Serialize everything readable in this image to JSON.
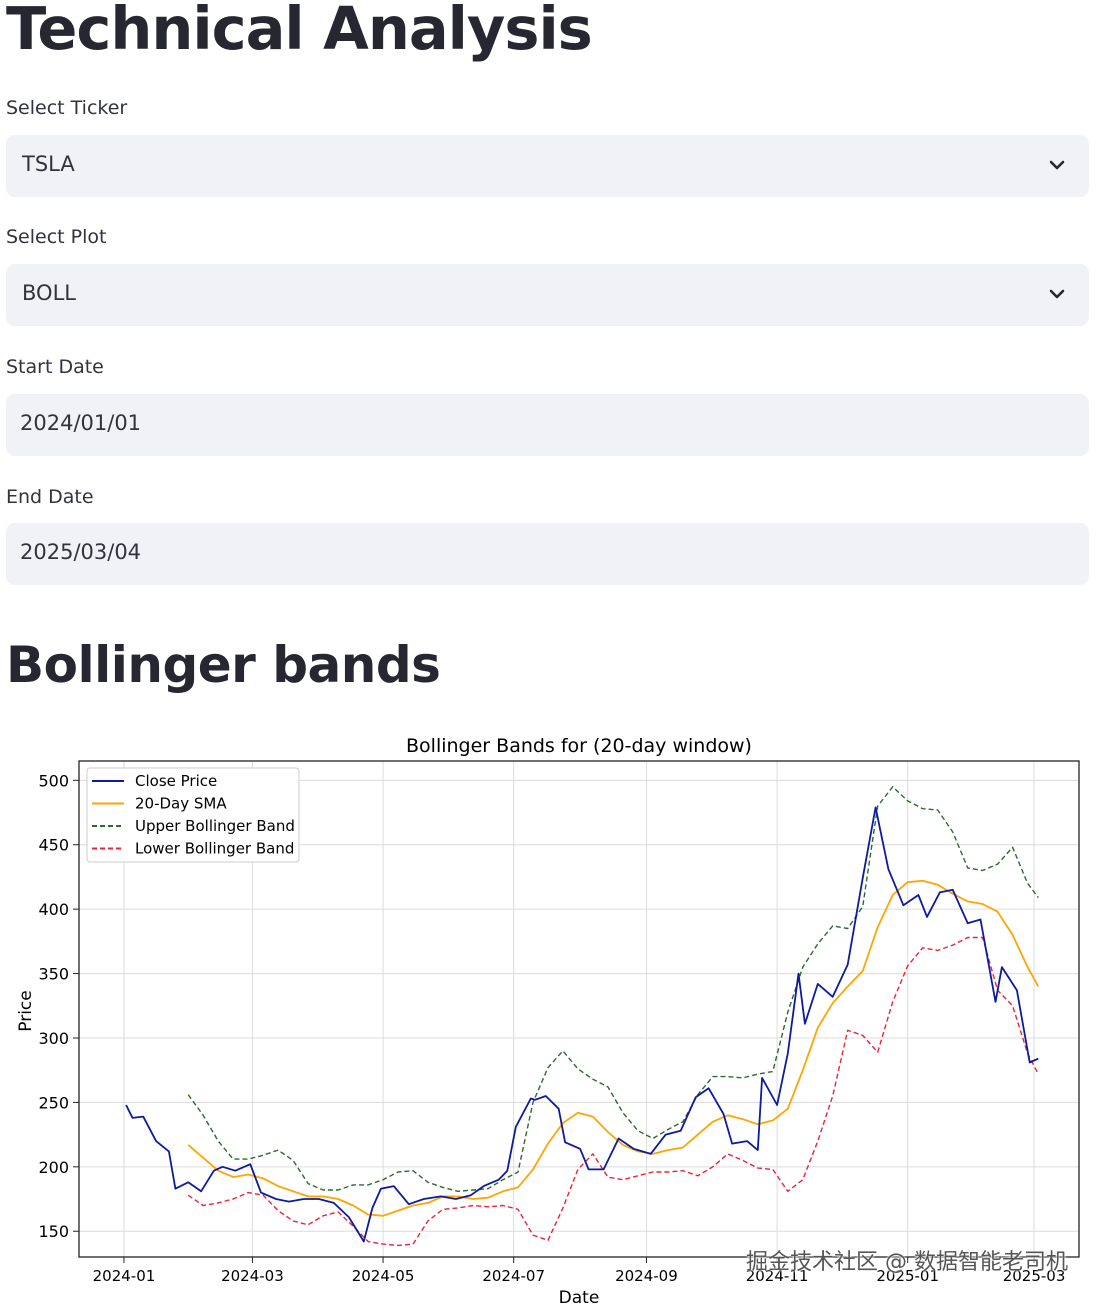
{
  "page": {
    "title": "Technical Analysis",
    "section_title": "Bollinger bands"
  },
  "form": {
    "ticker_label": "Select Ticker",
    "ticker_value": "TSLA",
    "plot_label": "Select Plot",
    "plot_value": "BOLL",
    "start_label": "Start Date",
    "start_value": "2024/01/01",
    "end_label": "End Date",
    "end_value": "2025/03/04"
  },
  "watermark": "掘金技术社区 @ 数据智能老司机",
  "icons": {
    "dropdown": "chevron-down-icon"
  },
  "chart_data": {
    "type": "line",
    "title": "Bollinger Bands for (20-day window)",
    "xlabel": "Date",
    "ylabel": "Price",
    "ylim": [
      130,
      515
    ],
    "xlim": [
      "2023-12-11",
      "2025-03-22"
    ],
    "xticks": [
      "2024-01",
      "2024-03",
      "2024-05",
      "2024-07",
      "2024-09",
      "2024-11",
      "2025-01",
      "2025-03"
    ],
    "yticks": [
      150,
      200,
      250,
      300,
      350,
      400,
      450,
      500
    ],
    "grid": true,
    "legend": "top-left",
    "series": [
      {
        "name": "Close Price",
        "color": "#0d1b9e",
        "style": "solid",
        "points": [
          [
            "2024-01-02",
            248
          ],
          [
            "2024-01-05",
            238
          ],
          [
            "2024-01-10",
            239
          ],
          [
            "2024-01-16",
            220
          ],
          [
            "2024-01-22",
            212
          ],
          [
            "2024-01-25",
            183
          ],
          [
            "2024-01-31",
            188
          ],
          [
            "2024-02-06",
            181
          ],
          [
            "2024-02-12",
            197
          ],
          [
            "2024-02-16",
            200
          ],
          [
            "2024-02-22",
            197
          ],
          [
            "2024-02-29",
            202
          ],
          [
            "2024-03-05",
            180
          ],
          [
            "2024-03-12",
            175
          ],
          [
            "2024-03-18",
            173
          ],
          [
            "2024-03-25",
            175
          ],
          [
            "2024-04-01",
            175
          ],
          [
            "2024-04-08",
            172
          ],
          [
            "2024-04-15",
            161
          ],
          [
            "2024-04-22",
            142
          ],
          [
            "2024-04-26",
            168
          ],
          [
            "2024-04-30",
            183
          ],
          [
            "2024-05-06",
            185
          ],
          [
            "2024-05-13",
            171
          ],
          [
            "2024-05-20",
            175
          ],
          [
            "2024-05-28",
            177
          ],
          [
            "2024-06-04",
            175
          ],
          [
            "2024-06-11",
            178
          ],
          [
            "2024-06-17",
            185
          ],
          [
            "2024-06-24",
            190
          ],
          [
            "2024-06-28",
            197
          ],
          [
            "2024-07-02",
            231
          ],
          [
            "2024-07-09",
            253
          ],
          [
            "2024-07-11",
            252
          ],
          [
            "2024-07-16",
            255
          ],
          [
            "2024-07-22",
            245
          ],
          [
            "2024-07-25",
            219
          ],
          [
            "2024-08-01",
            214
          ],
          [
            "2024-08-05",
            198
          ],
          [
            "2024-08-12",
            198
          ],
          [
            "2024-08-19",
            222
          ],
          [
            "2024-08-26",
            214
          ],
          [
            "2024-09-03",
            210
          ],
          [
            "2024-09-10",
            225
          ],
          [
            "2024-09-17",
            228
          ],
          [
            "2024-09-24",
            254
          ],
          [
            "2024-09-30",
            261
          ],
          [
            "2024-10-07",
            241
          ],
          [
            "2024-10-11",
            218
          ],
          [
            "2024-10-18",
            220
          ],
          [
            "2024-10-23",
            213
          ],
          [
            "2024-10-25",
            269
          ],
          [
            "2024-11-01",
            248
          ],
          [
            "2024-11-06",
            288
          ],
          [
            "2024-11-11",
            350
          ],
          [
            "2024-11-14",
            311
          ],
          [
            "2024-11-20",
            342
          ],
          [
            "2024-11-27",
            332
          ],
          [
            "2024-12-04",
            357
          ],
          [
            "2024-12-11",
            424
          ],
          [
            "2024-12-17",
            479
          ],
          [
            "2024-12-23",
            431
          ],
          [
            "2024-12-30",
            403
          ],
          [
            "2025-01-06",
            411
          ],
          [
            "2025-01-10",
            394
          ],
          [
            "2025-01-16",
            413
          ],
          [
            "2025-01-22",
            415
          ],
          [
            "2025-01-29",
            389
          ],
          [
            "2025-02-04",
            392
          ],
          [
            "2025-02-11",
            328
          ],
          [
            "2025-02-14",
            355
          ],
          [
            "2025-02-21",
            337
          ],
          [
            "2025-02-27",
            281
          ],
          [
            "2025-03-03",
            284
          ]
        ]
      },
      {
        "name": "20-Day SMA",
        "color": "#ffa500",
        "style": "solid",
        "points": [
          [
            "2024-01-31",
            217
          ],
          [
            "2024-02-07",
            207
          ],
          [
            "2024-02-14",
            197
          ],
          [
            "2024-02-21",
            192
          ],
          [
            "2024-02-28",
            194
          ],
          [
            "2024-03-06",
            191
          ],
          [
            "2024-03-13",
            185
          ],
          [
            "2024-03-20",
            181
          ],
          [
            "2024-03-27",
            177
          ],
          [
            "2024-04-03",
            177
          ],
          [
            "2024-04-10",
            175
          ],
          [
            "2024-04-17",
            170
          ],
          [
            "2024-04-24",
            163
          ],
          [
            "2024-05-01",
            162
          ],
          [
            "2024-05-08",
            166
          ],
          [
            "2024-05-15",
            170
          ],
          [
            "2024-05-22",
            172
          ],
          [
            "2024-05-29",
            177
          ],
          [
            "2024-06-05",
            177
          ],
          [
            "2024-06-12",
            175
          ],
          [
            "2024-06-19",
            176
          ],
          [
            "2024-06-26",
            181
          ],
          [
            "2024-07-03",
            184
          ],
          [
            "2024-07-10",
            198
          ],
          [
            "2024-07-17",
            218
          ],
          [
            "2024-07-24",
            234
          ],
          [
            "2024-07-31",
            242
          ],
          [
            "2024-08-07",
            239
          ],
          [
            "2024-08-14",
            227
          ],
          [
            "2024-08-21",
            217
          ],
          [
            "2024-08-28",
            212
          ],
          [
            "2024-09-04",
            210
          ],
          [
            "2024-09-11",
            213
          ],
          [
            "2024-09-18",
            215
          ],
          [
            "2024-09-25",
            225
          ],
          [
            "2024-10-02",
            235
          ],
          [
            "2024-10-09",
            240
          ],
          [
            "2024-10-16",
            237
          ],
          [
            "2024-10-23",
            233
          ],
          [
            "2024-10-30",
            236
          ],
          [
            "2024-11-06",
            245
          ],
          [
            "2024-11-13",
            275
          ],
          [
            "2024-11-20",
            308
          ],
          [
            "2024-11-27",
            327
          ],
          [
            "2024-12-04",
            340
          ],
          [
            "2024-12-11",
            352
          ],
          [
            "2024-12-18",
            386
          ],
          [
            "2024-12-25",
            411
          ],
          [
            "2025-01-01",
            421
          ],
          [
            "2025-01-08",
            422
          ],
          [
            "2025-01-15",
            419
          ],
          [
            "2025-01-22",
            412
          ],
          [
            "2025-01-29",
            406
          ],
          [
            "2025-02-05",
            404
          ],
          [
            "2025-02-12",
            398
          ],
          [
            "2025-02-19",
            380
          ],
          [
            "2025-02-26",
            355
          ],
          [
            "2025-03-03",
            340
          ]
        ]
      },
      {
        "name": "Upper Bollinger Band",
        "color": "#2d6a32",
        "style": "dashed",
        "points": [
          [
            "2024-01-31",
            256
          ],
          [
            "2024-02-07",
            240
          ],
          [
            "2024-02-14",
            220
          ],
          [
            "2024-02-21",
            206
          ],
          [
            "2024-02-28",
            206
          ],
          [
            "2024-03-06",
            209
          ],
          [
            "2024-03-13",
            213
          ],
          [
            "2024-03-20",
            205
          ],
          [
            "2024-03-27",
            187
          ],
          [
            "2024-04-03",
            182
          ],
          [
            "2024-04-10",
            182
          ],
          [
            "2024-04-17",
            186
          ],
          [
            "2024-04-24",
            186
          ],
          [
            "2024-05-01",
            190
          ],
          [
            "2024-05-08",
            196
          ],
          [
            "2024-05-15",
            197
          ],
          [
            "2024-05-22",
            188
          ],
          [
            "2024-05-29",
            184
          ],
          [
            "2024-06-05",
            181
          ],
          [
            "2024-06-12",
            182
          ],
          [
            "2024-06-19",
            183
          ],
          [
            "2024-06-26",
            190
          ],
          [
            "2024-07-03",
            196
          ],
          [
            "2024-07-10",
            250
          ],
          [
            "2024-07-17",
            277
          ],
          [
            "2024-07-24",
            290
          ],
          [
            "2024-07-31",
            276
          ],
          [
            "2024-08-07",
            268
          ],
          [
            "2024-08-14",
            262
          ],
          [
            "2024-08-21",
            242
          ],
          [
            "2024-08-28",
            228
          ],
          [
            "2024-09-04",
            222
          ],
          [
            "2024-09-11",
            229
          ],
          [
            "2024-09-18",
            235
          ],
          [
            "2024-09-25",
            256
          ],
          [
            "2024-10-02",
            270
          ],
          [
            "2024-10-09",
            270
          ],
          [
            "2024-10-16",
            269
          ],
          [
            "2024-10-23",
            272
          ],
          [
            "2024-10-30",
            274
          ],
          [
            "2024-11-06",
            320
          ],
          [
            "2024-11-13",
            355
          ],
          [
            "2024-11-20",
            373
          ],
          [
            "2024-11-27",
            387
          ],
          [
            "2024-12-04",
            385
          ],
          [
            "2024-12-11",
            402
          ],
          [
            "2024-12-18",
            480
          ],
          [
            "2024-12-25",
            495
          ],
          [
            "2025-01-01",
            484
          ],
          [
            "2025-01-08",
            478
          ],
          [
            "2025-01-15",
            477
          ],
          [
            "2025-01-22",
            460
          ],
          [
            "2025-01-29",
            432
          ],
          [
            "2025-02-05",
            430
          ],
          [
            "2025-02-12",
            435
          ],
          [
            "2025-02-19",
            448
          ],
          [
            "2025-02-26",
            420
          ],
          [
            "2025-03-03",
            409
          ]
        ]
      },
      {
        "name": "Lower Bollinger Band",
        "color": "#e8243c",
        "style": "dashed",
        "points": [
          [
            "2024-01-31",
            178
          ],
          [
            "2024-02-07",
            170
          ],
          [
            "2024-02-14",
            172
          ],
          [
            "2024-02-21",
            175
          ],
          [
            "2024-02-28",
            180
          ],
          [
            "2024-03-06",
            178
          ],
          [
            "2024-03-13",
            166
          ],
          [
            "2024-03-20",
            158
          ],
          [
            "2024-03-27",
            155
          ],
          [
            "2024-04-03",
            162
          ],
          [
            "2024-04-10",
            165
          ],
          [
            "2024-04-17",
            154
          ],
          [
            "2024-04-24",
            142
          ],
          [
            "2024-05-01",
            140
          ],
          [
            "2024-05-08",
            139
          ],
          [
            "2024-05-15",
            140
          ],
          [
            "2024-05-22",
            158
          ],
          [
            "2024-05-29",
            167
          ],
          [
            "2024-06-05",
            168
          ],
          [
            "2024-06-12",
            170
          ],
          [
            "2024-06-19",
            169
          ],
          [
            "2024-06-26",
            170
          ],
          [
            "2024-07-03",
            167
          ],
          [
            "2024-07-10",
            147
          ],
          [
            "2024-07-17",
            143
          ],
          [
            "2024-07-24",
            168
          ],
          [
            "2024-07-31",
            198
          ],
          [
            "2024-08-07",
            210
          ],
          [
            "2024-08-14",
            192
          ],
          [
            "2024-08-21",
            190
          ],
          [
            "2024-08-28",
            193
          ],
          [
            "2024-09-04",
            196
          ],
          [
            "2024-09-11",
            196
          ],
          [
            "2024-09-18",
            197
          ],
          [
            "2024-09-25",
            193
          ],
          [
            "2024-10-02",
            200
          ],
          [
            "2024-10-09",
            210
          ],
          [
            "2024-10-16",
            205
          ],
          [
            "2024-10-23",
            199
          ],
          [
            "2024-10-30",
            198
          ],
          [
            "2024-11-06",
            181
          ],
          [
            "2024-11-13",
            190
          ],
          [
            "2024-11-20",
            220
          ],
          [
            "2024-11-27",
            255
          ],
          [
            "2024-12-04",
            306
          ],
          [
            "2024-12-11",
            302
          ],
          [
            "2024-12-18",
            289
          ],
          [
            "2024-12-25",
            328
          ],
          [
            "2025-01-01",
            356
          ],
          [
            "2025-01-08",
            370
          ],
          [
            "2025-01-15",
            368
          ],
          [
            "2025-01-22",
            372
          ],
          [
            "2025-01-29",
            378
          ],
          [
            "2025-02-05",
            378
          ],
          [
            "2025-02-12",
            337
          ],
          [
            "2025-02-19",
            325
          ],
          [
            "2025-02-26",
            288
          ],
          [
            "2025-03-03",
            272
          ]
        ]
      }
    ]
  }
}
